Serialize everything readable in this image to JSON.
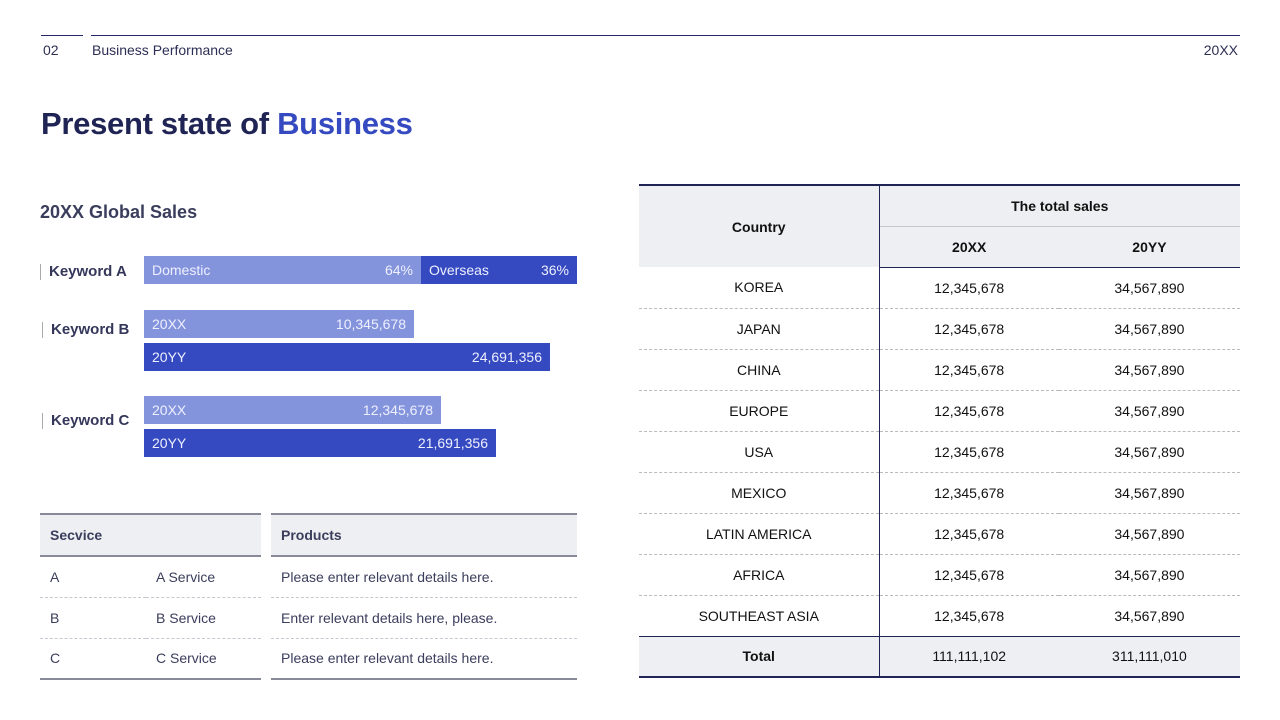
{
  "header": {
    "page_number": "02",
    "section": "Business Performance",
    "year": "20XX"
  },
  "title": {
    "prefix": "Present state of ",
    "accent": "Business"
  },
  "sales": {
    "title": "20XX Global Sales",
    "keyword_a": {
      "label": "Keyword A",
      "domestic_label": "Domestic",
      "domestic_pct": "64%",
      "overseas_label": "Overseas",
      "overseas_pct": "36%"
    },
    "keyword_b": {
      "label": "Keyword B",
      "y1_label": "20XX",
      "y1_value": "10,345,678",
      "y2_label": "20YY",
      "y2_value": "24,691,356"
    },
    "keyword_c": {
      "label": "Keyword C",
      "y1_label": "20XX",
      "y1_value": "12,345,678",
      "y2_label": "20YY",
      "y2_value": "21,691,356"
    }
  },
  "service_table": {
    "header": "Secvice",
    "rows": [
      {
        "code": "A",
        "name": "A Service"
      },
      {
        "code": "B",
        "name": "B Service"
      },
      {
        "code": "C",
        "name": "C Service"
      }
    ]
  },
  "products_table": {
    "header": "Products",
    "rows": [
      "Please enter relevant details here.",
      "Enter relevant details here, please.",
      "Please enter relevant details here."
    ]
  },
  "country_table": {
    "country_header": "Country",
    "group_header": "The total sales",
    "col1": "20XX",
    "col2": "20YY",
    "rows": [
      [
        "KOREA",
        "12,345,678",
        "34,567,890"
      ],
      [
        "JAPAN",
        "12,345,678",
        "34,567,890"
      ],
      [
        "CHINA",
        "12,345,678",
        "34,567,890"
      ],
      [
        "EUROPE",
        "12,345,678",
        "34,567,890"
      ],
      [
        "USA",
        "12,345,678",
        "34,567,890"
      ],
      [
        "MEXICO",
        "12,345,678",
        "34,567,890"
      ],
      [
        "LATIN AMERICA",
        "12,345,678",
        "34,567,890"
      ],
      [
        "AFRICA",
        "12,345,678",
        "34,567,890"
      ],
      [
        "SOUTHEAST ASIA",
        "12,345,678",
        "34,567,890"
      ]
    ],
    "total": [
      "Total",
      "111,111,102",
      "311,111,010"
    ]
  }
}
